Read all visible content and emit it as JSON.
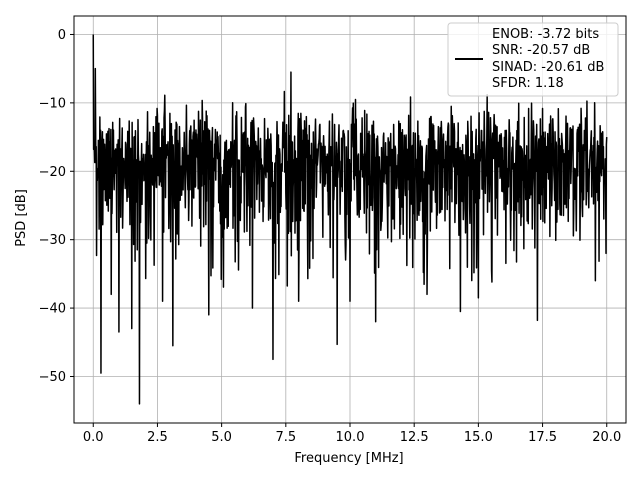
{
  "chart_data": {
    "type": "line",
    "xlabel": "Frequency [MHz]",
    "ylabel": "PSD [dB]",
    "xlim": [
      -0.75,
      20.75
    ],
    "ylim": [
      -56.8,
      2.7
    ],
    "xticks": [
      0.0,
      2.5,
      5.0,
      7.5,
      10.0,
      12.5,
      15.0,
      17.5,
      20.0
    ],
    "xtick_labels": [
      "0.0",
      "2.5",
      "5.0",
      "7.5",
      "10.0",
      "12.5",
      "15.0",
      "17.5",
      "20.0"
    ],
    "yticks": [
      0,
      -10,
      -20,
      -30,
      -40,
      -50
    ],
    "ytick_labels": [
      "0",
      "−10",
      "−20",
      "−30",
      "−40",
      "−50"
    ],
    "grid": true,
    "legend_position": "top-right",
    "series": [
      {
        "color": "#000000",
        "x_range": [
          0,
          20
        ],
        "peak_points": [
          {
            "x": 0.0,
            "y": 0.0
          },
          {
            "x": 0.03,
            "y": -25.5
          },
          {
            "x": 0.08,
            "y": -5.0
          },
          {
            "x": 0.3,
            "y": -49.5
          },
          {
            "x": 0.7,
            "y": -38.0
          },
          {
            "x": 1.0,
            "y": -43.5
          },
          {
            "x": 1.5,
            "y": -43.0
          },
          {
            "x": 1.8,
            "y": -54.0
          },
          {
            "x": 2.7,
            "y": -39.0
          },
          {
            "x": 3.1,
            "y": -45.5
          },
          {
            "x": 4.5,
            "y": -41.0
          },
          {
            "x": 6.2,
            "y": -40.0
          },
          {
            "x": 7.0,
            "y": -47.5
          },
          {
            "x": 7.7,
            "y": -5.5
          },
          {
            "x": 8.0,
            "y": -39.0
          },
          {
            "x": 9.5,
            "y": -45.3
          },
          {
            "x": 10.0,
            "y": -39.0
          },
          {
            "x": 11.0,
            "y": -42.0
          },
          {
            "x": 13.0,
            "y": -38.0
          },
          {
            "x": 14.3,
            "y": -40.5
          },
          {
            "x": 15.0,
            "y": -38.5
          },
          {
            "x": 17.3,
            "y": -41.8
          },
          {
            "x": 20.0,
            "y": -15.0
          }
        ],
        "noise_floor_db": -20
      }
    ],
    "legend": {
      "lines": [
        "ENOB: -3.72 bits",
        "SNR: -20.57 dB",
        "SINAD: -20.61 dB",
        "SFDR: 1.18"
      ]
    }
  }
}
